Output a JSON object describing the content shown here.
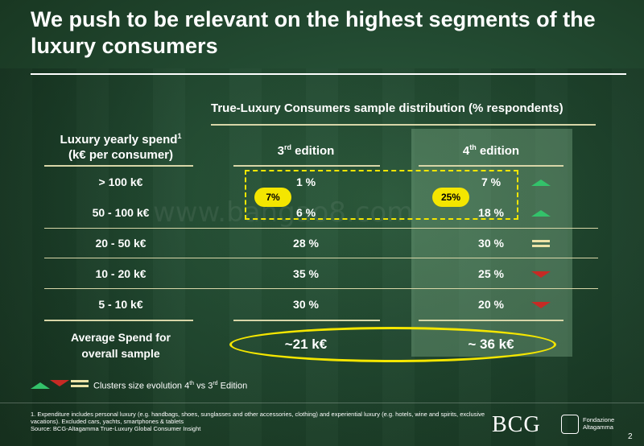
{
  "title": "We push to be relevant on the highest segments of the luxury consumers",
  "table": {
    "main_header": "True-Luxury Consumers sample distribution (% respondents)",
    "row_header_line1": "Luxury yearly spend",
    "row_header_sup": "1",
    "row_header_line2": "(k€ per consumer)",
    "col3_num": "3",
    "col3_sup": "rd",
    "col3_word": " edition",
    "col4_num": "4",
    "col4_sup": "th",
    "col4_word": " edition",
    "rows": [
      {
        "label": "> 100 k€",
        "third": "1 %",
        "fourth": "7 %",
        "trend": "up"
      },
      {
        "label": "50 - 100 k€",
        "third": "6 %",
        "fourth": "18 %",
        "trend": "up"
      },
      {
        "label": "20 - 50 k€",
        "third": "28 %",
        "fourth": "30 %",
        "trend": "equal"
      },
      {
        "label": "10 - 20 k€",
        "third": "35 %",
        "fourth": "25 %",
        "trend": "down"
      },
      {
        "label": "5 - 10 k€",
        "third": "30 %",
        "fourth": "20 %",
        "trend": "down"
      }
    ],
    "avg_label_line1": "Average Spend for",
    "avg_label_line2": "overall sample",
    "avg_third": "~21 k€",
    "avg_fourth": "~ 36 k€",
    "pill_third": "7%",
    "pill_fourth": "25%"
  },
  "legend": {
    "text_prefix": "Clusters size evolution 4",
    "sup1": "th",
    "text_mid": " vs 3",
    "sup2": "rd",
    "text_suffix": " Edition"
  },
  "footnote_line1": "1. Expenditure includes personal luxury (e.g. handbags, shoes, sunglasses and other accessories, clothing) and experiential luxury (e.g. hotels, wine and spirits, exclusive vacations). Excluded cars, yachts, smartphones & tablets",
  "footnote_line2": "Source: BCG-Altagamma True-Luxury Global Consumer Insight",
  "logos": {
    "bcg": "BCG",
    "fondazione_line1": "Fondazione",
    "fondazione_line2": "Altagamma"
  },
  "page_number": "2",
  "watermark": "www.bangao8.com",
  "colors": {
    "accent_yellow": "#f4e600",
    "up_green": "#33c26a",
    "down_red": "#c62a24",
    "equal_beige": "#ece3a6"
  }
}
